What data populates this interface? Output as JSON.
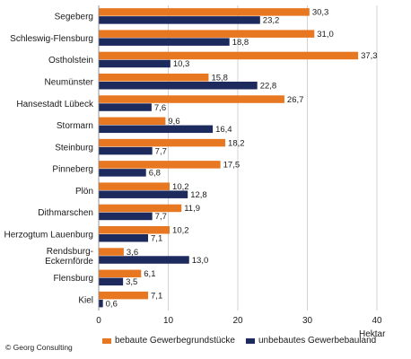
{
  "chart_data": {
    "type": "bar",
    "orientation": "horizontal",
    "categories": [
      "Segeberg",
      "Schleswig-Flensburg",
      "Ostholstein",
      "Neumünster",
      "Hansestadt Lübeck",
      "Stormarn",
      "Steinburg",
      "Pinneberg",
      "Plön",
      "Dithmarschen",
      "Herzogtum Lauenburg",
      "Rendsburg-Eckernförde",
      "Flensburg",
      "Kiel"
    ],
    "series": [
      {
        "name": "bebaute Gewerbegrundstücke",
        "color": "#e87722",
        "values": [
          30.3,
          31.0,
          37.3,
          15.8,
          26.7,
          9.6,
          18.2,
          17.5,
          10.2,
          11.9,
          10.2,
          3.6,
          6.1,
          7.1
        ],
        "labels": [
          "30,3",
          "31,0",
          "37,3",
          "15,8",
          "26,7",
          "9,6",
          "18,2",
          "17,5",
          "10,2",
          "11,9",
          "10,2",
          "3,6",
          "6,1",
          "7,1"
        ]
      },
      {
        "name": "unbebautes Gewerbebauland",
        "color": "#1c2a5e",
        "values": [
          23.2,
          18.8,
          10.3,
          22.8,
          7.6,
          16.4,
          7.7,
          6.8,
          12.8,
          7.7,
          7.1,
          13.0,
          3.5,
          0.6
        ],
        "labels": [
          "23,2",
          "18,8",
          "10,3",
          "22,8",
          "7,6",
          "16,4",
          "7,7",
          "6,8",
          "12,8",
          "7,7",
          "7,1",
          "13,0",
          "3,5",
          "0,6"
        ]
      }
    ],
    "xlim": [
      0,
      40
    ],
    "xticks": [
      "0",
      "10",
      "20",
      "30",
      "40"
    ],
    "xunit": "Hektar",
    "grid": "vertical",
    "legend": "bottom"
  },
  "copyright": "© Georg Consulting"
}
